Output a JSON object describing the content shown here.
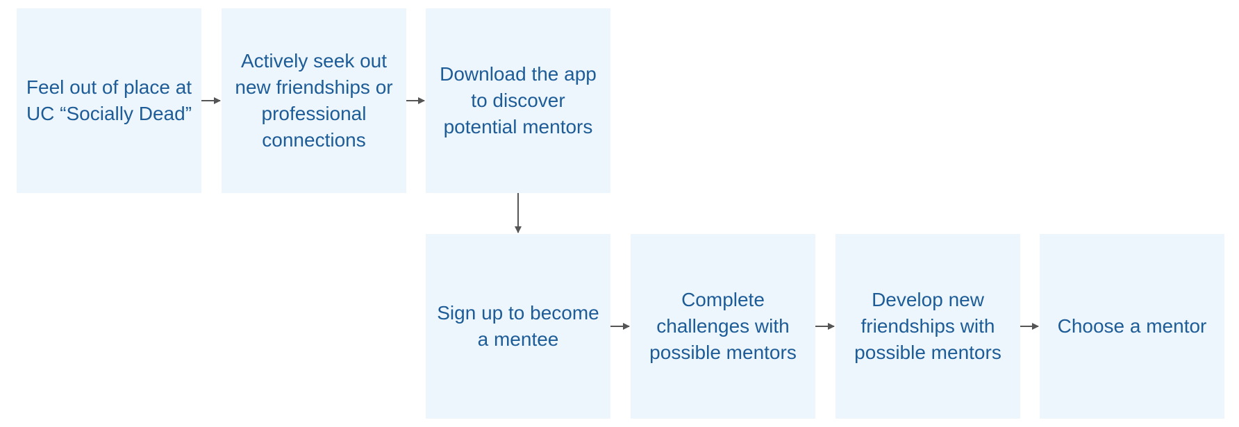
{
  "colors": {
    "node_fill": "#eef6fd",
    "node_text": "#1d5c97",
    "arrow": "#555555"
  },
  "steps": [
    {
      "label": "Feel out of place at UC “Socially Dead”"
    },
    {
      "label": "Actively seek out new friendships or professional connections"
    },
    {
      "label": "Download the app to discover potential mentors"
    },
    {
      "label": "Sign up to become a mentee"
    },
    {
      "label": "Complete challenges with possible mentors"
    },
    {
      "label": "Develop new friendships with possible mentors"
    },
    {
      "label": "Choose a mentor"
    }
  ],
  "connections": [
    {
      "from": 0,
      "to": 1
    },
    {
      "from": 1,
      "to": 2
    },
    {
      "from": 2,
      "to": 3
    },
    {
      "from": 3,
      "to": 4
    },
    {
      "from": 4,
      "to": 5
    },
    {
      "from": 5,
      "to": 6
    }
  ]
}
